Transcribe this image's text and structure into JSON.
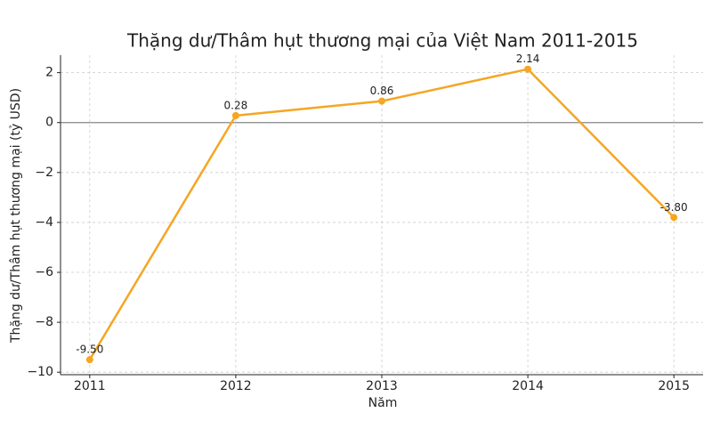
{
  "chart_data": {
    "type": "line",
    "title": "Thặng dư/Thâm hụt thương mại của Việt Nam 2011-2015",
    "x_label": "Năm",
    "y_label": "Thặng dư/Thâm hụt thương mại (tỷ USD)",
    "x": [
      2011,
      2012,
      2013,
      2014,
      2015
    ],
    "series": [
      {
        "name": "Thặng dư/Thâm hụt",
        "color": "#f5a623",
        "values": [
          -9.5,
          0.28,
          0.86,
          2.14,
          -3.8
        ],
        "value_labels": [
          "-9.50",
          "0.28",
          "0.86",
          "2.14",
          "-3.80"
        ]
      }
    ],
    "xlim": [
      2010.8,
      2015.2
    ],
    "xticks": [
      2011,
      2012,
      2013,
      2014,
      2015
    ],
    "ylim": [
      -10.1,
      2.7
    ],
    "yticks": [
      {
        "value": -10,
        "label": "−10"
      },
      {
        "value": -8,
        "label": "−8"
      },
      {
        "value": -6,
        "label": "−6"
      },
      {
        "value": -4,
        "label": "−4"
      },
      {
        "value": -2,
        "label": "−2"
      },
      0,
      2
    ],
    "reference_line": 0,
    "grid": true
  }
}
